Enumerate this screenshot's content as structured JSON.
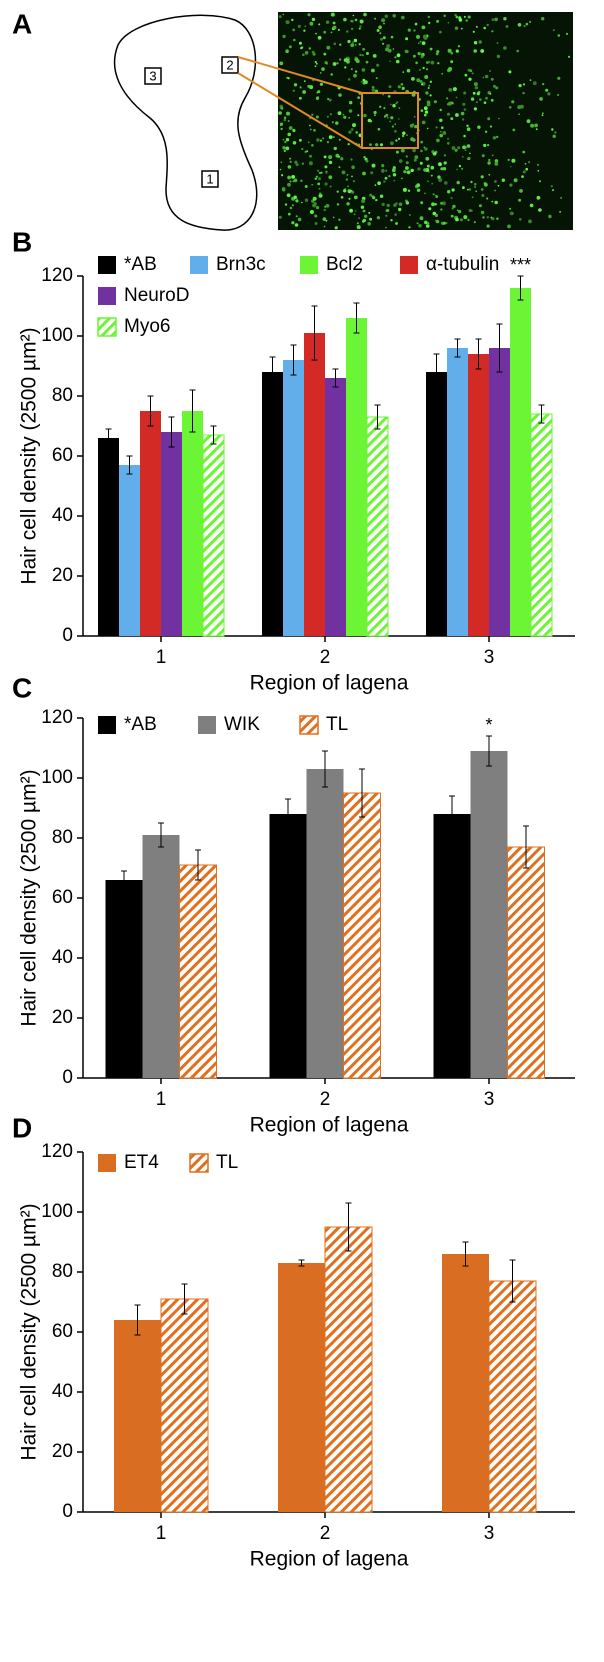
{
  "panel_a": {
    "label": "A",
    "regions": [
      "1",
      "2",
      "3"
    ]
  },
  "chart_data": [
    {
      "type": "bar",
      "panel": "B",
      "ylabel": "Hair cell density (2500 µm²)",
      "xlabel": "Region of lagena",
      "categories": [
        "1",
        "2",
        "3"
      ],
      "ylim": [
        0,
        120
      ],
      "yticks": [
        0,
        20,
        40,
        60,
        80,
        100,
        120
      ],
      "series": [
        {
          "name": "*AB",
          "color": "#000000",
          "values": [
            66,
            88,
            88
          ],
          "errors": [
            3,
            5,
            6
          ]
        },
        {
          "name": "Brn3c",
          "color": "#62aeea",
          "values": [
            57,
            92,
            96
          ],
          "errors": [
            3,
            5,
            3
          ]
        },
        {
          "name": "α-tubulin",
          "color": "#d42a25",
          "values": [
            75,
            101,
            94
          ],
          "errors": [
            5,
            9,
            5
          ]
        },
        {
          "name": "NeuroD",
          "color": "#7131a0",
          "values": [
            68,
            86,
            96
          ],
          "errors": [
            5,
            3,
            8
          ]
        },
        {
          "name": "Bcl2",
          "color": "#6cf535",
          "values": [
            75,
            106,
            116
          ],
          "errors": [
            7,
            5,
            4
          ]
        },
        {
          "name": "Myo6",
          "color": "#6cf535",
          "hatch": true,
          "values": [
            67,
            73,
            74
          ],
          "errors": [
            3,
            4,
            3
          ]
        }
      ],
      "annotations": [
        "***"
      ]
    },
    {
      "type": "bar",
      "panel": "C",
      "ylabel": "Hair cell density (2500 µm²)",
      "xlabel": "Region of lagena",
      "categories": [
        "1",
        "2",
        "3"
      ],
      "ylim": [
        0,
        120
      ],
      "yticks": [
        0,
        20,
        40,
        60,
        80,
        100,
        120
      ],
      "series": [
        {
          "name": "*AB",
          "color": "#000000",
          "values": [
            66,
            88,
            88
          ],
          "errors": [
            3,
            5,
            6
          ]
        },
        {
          "name": "WIK",
          "color": "#7f7f7f",
          "values": [
            81,
            103,
            109
          ],
          "errors": [
            4,
            6,
            5
          ]
        },
        {
          "name": "TL",
          "color": "#e0701e",
          "hatch": true,
          "values": [
            71,
            95,
            77
          ],
          "errors": [
            5,
            8,
            7
          ]
        }
      ],
      "annotations": [
        "*"
      ]
    },
    {
      "type": "bar",
      "panel": "D",
      "ylabel": "Hair cell density (2500 µm²)",
      "xlabel": "Region of lagena",
      "categories": [
        "1",
        "2",
        "3"
      ],
      "ylim": [
        0,
        120
      ],
      "yticks": [
        0,
        20,
        40,
        60,
        80,
        100,
        120
      ],
      "series": [
        {
          "name": "ET4",
          "color": "#d96d22",
          "values": [
            64,
            83,
            86
          ],
          "errors": [
            5,
            1,
            4
          ]
        },
        {
          "name": "TL",
          "color": "#e0701e",
          "hatch": true,
          "values": [
            71,
            95,
            77
          ],
          "errors": [
            5,
            8,
            7
          ]
        }
      ]
    }
  ]
}
